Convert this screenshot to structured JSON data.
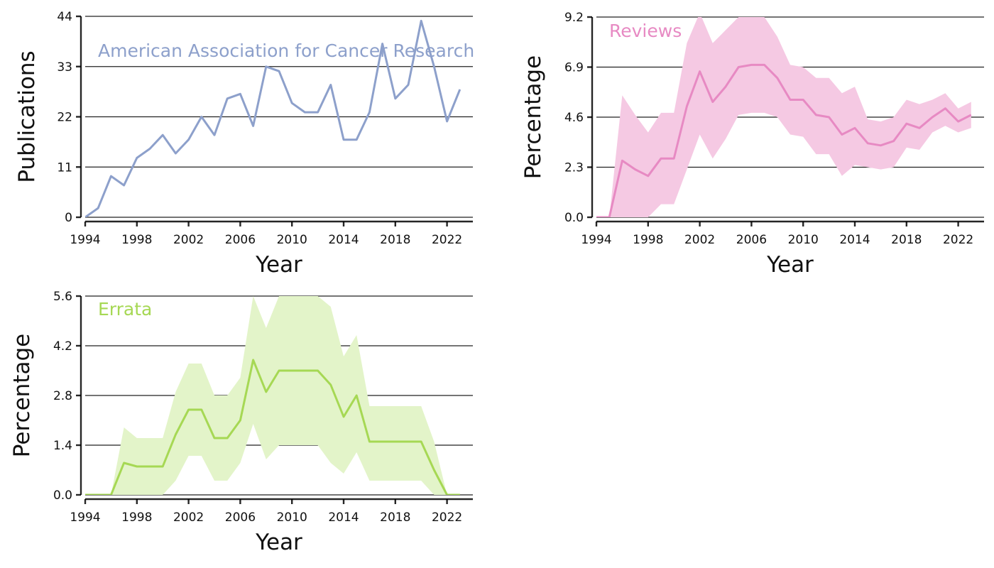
{
  "chart_data": [
    {
      "type": "line",
      "label": "American Association for Cancer Research",
      "xlabel": "Year",
      "ylabel": "Publications",
      "color": "#8DA0CB",
      "xlim": [
        1994,
        2024
      ],
      "xticks": [
        1994,
        1998,
        2002,
        2006,
        2010,
        2014,
        2018,
        2022
      ],
      "ylim": [
        0,
        44
      ],
      "yticks": [
        "0",
        "11",
        "22",
        "33",
        "44"
      ],
      "grid": "horizontal",
      "x": [
        1994,
        1995,
        1996,
        1997,
        1998,
        1999,
        2000,
        2001,
        2002,
        2003,
        2004,
        2005,
        2006,
        2007,
        2008,
        2009,
        2010,
        2011,
        2012,
        2013,
        2014,
        2015,
        2016,
        2017,
        2018,
        2019,
        2020,
        2021,
        2022,
        2023
      ],
      "values": [
        0,
        2,
        9,
        7,
        13,
        15,
        18,
        14,
        17,
        22,
        18,
        26,
        27,
        20,
        33,
        32,
        25,
        23,
        23,
        29,
        17,
        17,
        23,
        38,
        26,
        29,
        43,
        33,
        21,
        28
      ]
    },
    {
      "type": "area",
      "label": "Reviews",
      "xlabel": "Year",
      "ylabel": "Percentage",
      "color": "#E78AC3",
      "band_color": "#F5C9E3",
      "xlim": [
        1994,
        2024
      ],
      "xticks": [
        1994,
        1998,
        2002,
        2006,
        2010,
        2014,
        2018,
        2022
      ],
      "ylim": [
        0,
        9.2
      ],
      "yticks": [
        "0.0",
        "2.3",
        "4.6",
        "6.9",
        "9.2"
      ],
      "grid": "horizontal",
      "x": [
        1994,
        1995,
        1996,
        1997,
        1998,
        1999,
        2000,
        2001,
        2002,
        2003,
        2004,
        2005,
        2006,
        2007,
        2008,
        2009,
        2010,
        2011,
        2012,
        2013,
        2014,
        2015,
        2016,
        2017,
        2018,
        2019,
        2020,
        2021,
        2022,
        2023
      ],
      "values": [
        0,
        0,
        2.6,
        2.2,
        1.9,
        2.7,
        2.7,
        5.1,
        6.7,
        5.3,
        6.0,
        6.9,
        7.0,
        7.0,
        6.4,
        5.4,
        5.4,
        4.7,
        4.6,
        3.8,
        4.1,
        3.4,
        3.3,
        3.5,
        4.3,
        4.1,
        4.6,
        5.0,
        4.4,
        4.7
      ],
      "lower": [
        0,
        0,
        0,
        0,
        0,
        0.6,
        0.6,
        2.2,
        3.8,
        2.7,
        3.6,
        4.7,
        4.8,
        4.8,
        4.6,
        3.8,
        3.7,
        2.9,
        2.9,
        1.9,
        2.4,
        2.3,
        2.2,
        2.3,
        3.2,
        3.1,
        3.9,
        4.2,
        3.9,
        4.1
      ],
      "upper": [
        0,
        0,
        5.6,
        4.7,
        3.9,
        4.8,
        4.8,
        8.0,
        9.4,
        8.0,
        8.6,
        9.2,
        9.3,
        9.2,
        8.3,
        7.0,
        6.9,
        6.4,
        6.4,
        5.7,
        6.0,
        4.5,
        4.4,
        4.6,
        5.4,
        5.2,
        5.4,
        5.7,
        5.0,
        5.3
      ]
    },
    {
      "type": "area",
      "label": "Errata",
      "xlabel": "Year",
      "ylabel": "Percentage",
      "color": "#A6D854",
      "band_color": "#E3F4C9",
      "xlim": [
        1994,
        2024
      ],
      "xticks": [
        1994,
        1998,
        2002,
        2006,
        2010,
        2014,
        2018,
        2022
      ],
      "ylim": [
        0,
        5.6
      ],
      "yticks": [
        "0.0",
        "1.4",
        "2.8",
        "4.2",
        "5.6"
      ],
      "grid": "horizontal",
      "x": [
        1994,
        1995,
        1996,
        1997,
        1998,
        1999,
        2000,
        2001,
        2002,
        2003,
        2004,
        2005,
        2006,
        2007,
        2008,
        2009,
        2010,
        2011,
        2012,
        2013,
        2014,
        2015,
        2016,
        2017,
        2018,
        2019,
        2020,
        2021,
        2022,
        2023
      ],
      "values": [
        0,
        0,
        0,
        0.9,
        0.8,
        0.8,
        0.8,
        1.7,
        2.4,
        2.4,
        1.6,
        1.6,
        2.1,
        3.8,
        2.9,
        3.5,
        3.5,
        3.5,
        3.5,
        3.1,
        2.2,
        2.8,
        1.5,
        1.5,
        1.5,
        1.5,
        1.5,
        0.7,
        0,
        0
      ],
      "lower": [
        0,
        0,
        0,
        0,
        0,
        0,
        0,
        0.4,
        1.1,
        1.1,
        0.4,
        0.4,
        0.9,
        2.0,
        1.0,
        1.4,
        1.4,
        1.4,
        1.4,
        0.9,
        0.6,
        1.2,
        0.4,
        0.4,
        0.4,
        0.4,
        0.4,
        0,
        0,
        0
      ],
      "upper": [
        0,
        0,
        0,
        1.9,
        1.6,
        1.6,
        1.6,
        2.9,
        3.7,
        3.7,
        2.8,
        2.8,
        3.3,
        5.6,
        4.7,
        5.6,
        5.6,
        5.6,
        5.6,
        5.3,
        3.9,
        4.5,
        2.5,
        2.5,
        2.5,
        2.5,
        2.5,
        1.5,
        0,
        0
      ]
    }
  ]
}
